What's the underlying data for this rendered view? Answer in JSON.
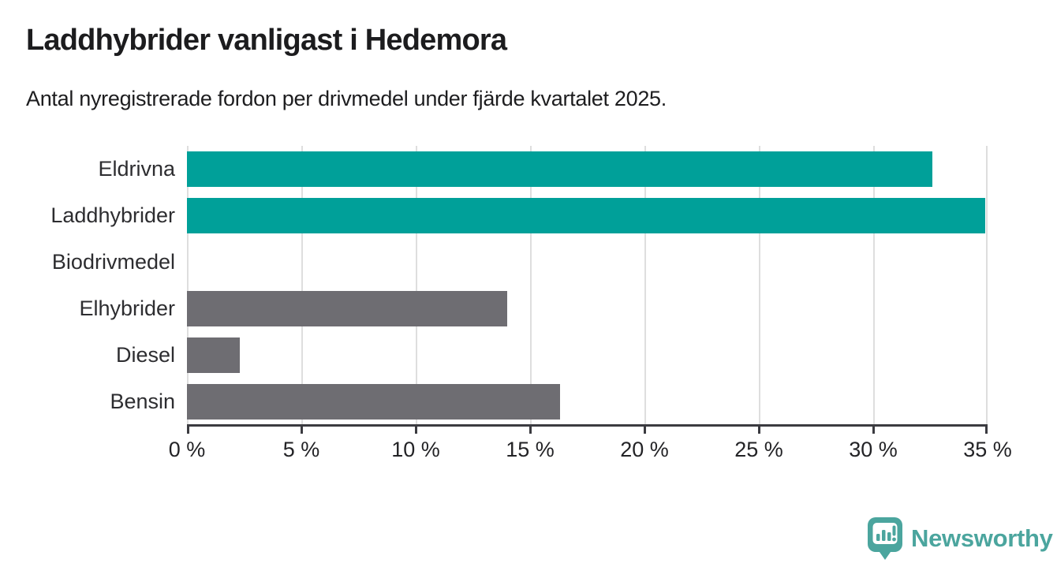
{
  "title": "Laddhybrider vanligast i Hedemora",
  "subtitle": "Antal nyregistrerade fordon per drivmedel under fjärde kvartalet 2025.",
  "brand": {
    "name": "Newsworthy",
    "color": "#4ba59e"
  },
  "colors": {
    "highlight_bar": "#00a099",
    "default_bar": "#6e6d72",
    "axis": "#3b3b40",
    "gridline": "#dedede",
    "text": "#1d1d1f"
  },
  "chart_data": {
    "type": "bar",
    "orientation": "horizontal",
    "title": "Laddhybrider vanligast i Hedemora",
    "subtitle": "Antal nyregistrerade fordon per drivmedel under fjärde kvartalet 2025.",
    "categories": [
      "Eldrivna",
      "Laddhybrider",
      "Biodrivmedel",
      "Elhybrider",
      "Diesel",
      "Bensin"
    ],
    "values": [
      32.6,
      34.9,
      0,
      14.0,
      2.3,
      16.3
    ],
    "bar_colors": [
      "#00a099",
      "#00a099",
      "#6e6d72",
      "#6e6d72",
      "#6e6d72",
      "#6e6d72"
    ],
    "unit": "%",
    "xlim": [
      0,
      35
    ],
    "x_ticks": [
      0,
      5,
      10,
      15,
      20,
      25,
      30,
      35
    ],
    "x_tick_labels": [
      "0 %",
      "5 %",
      "10 %",
      "15 %",
      "20 %",
      "25 %",
      "30 %",
      "35 %"
    ],
    "grid": true,
    "legend": false,
    "xlabel": "",
    "ylabel": ""
  }
}
